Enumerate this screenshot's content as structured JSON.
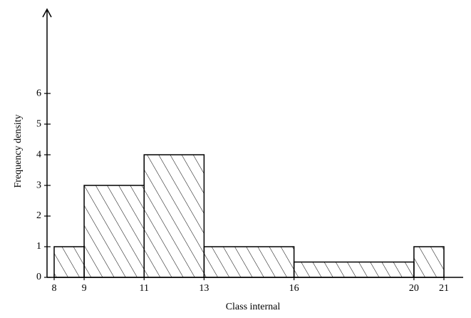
{
  "chart_data": {
    "type": "histogram",
    "xlabel": "Class internal",
    "ylabel": "Frequency density",
    "bins": [
      8,
      9,
      11,
      13,
      16,
      20,
      21
    ],
    "values": [
      1,
      3,
      4,
      1,
      0.5,
      1
    ],
    "color": "#000000",
    "hatch": true,
    "xlim": [
      8,
      21
    ],
    "ylim": [
      0,
      8.7
    ],
    "xticks": [
      8,
      9,
      11,
      13,
      16,
      20,
      21
    ],
    "yticks": [
      0,
      1,
      2,
      3,
      4,
      5,
      6
    ]
  }
}
